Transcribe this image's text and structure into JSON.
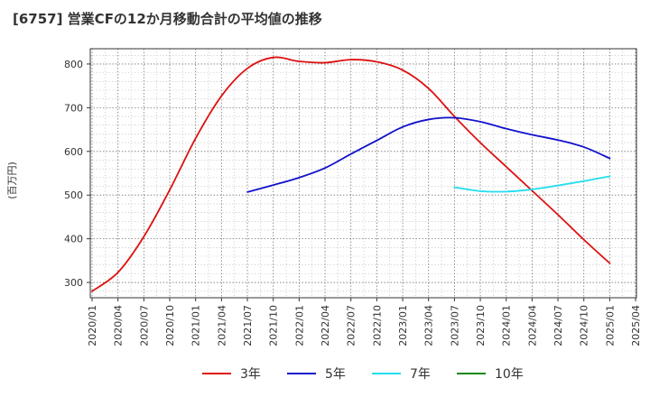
{
  "title": "[6757]  営業CFの12か月移動合計の平均値の推移",
  "chart_data": {
    "type": "line",
    "title": "[6757]  営業CFの12か月移動合計の平均値の推移",
    "xlabel": "",
    "ylabel": "(百万円)",
    "ylim": [
      265,
      835
    ],
    "yticks": [
      300,
      400,
      500,
      600,
      700,
      800
    ],
    "xticks": [
      "2020/01",
      "2020/04",
      "2020/07",
      "2020/10",
      "2021/01",
      "2021/04",
      "2021/07",
      "2021/10",
      "2022/01",
      "2022/04",
      "2022/07",
      "2022/10",
      "2023/01",
      "2023/04",
      "2023/07",
      "2023/10",
      "2024/01",
      "2024/04",
      "2024/07",
      "2024/10",
      "2025/01",
      "2025/04"
    ],
    "grid": true,
    "legend_position": "bottom",
    "series": [
      {
        "name": "3年",
        "color": "#dd1111",
        "x": [
          "2020/01",
          "2020/04",
          "2020/07",
          "2020/10",
          "2021/01",
          "2021/04",
          "2021/07",
          "2021/10",
          "2022/01",
          "2022/04",
          "2022/07",
          "2022/10",
          "2023/01",
          "2023/04",
          "2023/07",
          "2023/10",
          "2024/01",
          "2024/04",
          "2024/07",
          "2024/10",
          "2025/01"
        ],
        "values": [
          280,
          323,
          405,
          512,
          630,
          727,
          790,
          815,
          806,
          803,
          810,
          805,
          786,
          744,
          680,
          620,
          565,
          510,
          455,
          398,
          344
        ]
      },
      {
        "name": "5年",
        "color": "#1111cc",
        "x": [
          "2021/07",
          "2021/10",
          "2022/01",
          "2022/04",
          "2022/07",
          "2022/10",
          "2023/01",
          "2023/04",
          "2023/07",
          "2023/10",
          "2024/01",
          "2024/04",
          "2024/07",
          "2024/10",
          "2025/01"
        ],
        "values": [
          507,
          523,
          540,
          562,
          594,
          625,
          656,
          673,
          677,
          668,
          652,
          638,
          626,
          610,
          584
        ]
      },
      {
        "name": "7年",
        "color": "#22ddee",
        "x": [
          "2023/07",
          "2023/10",
          "2024/01",
          "2024/04",
          "2024/07",
          "2024/10",
          "2025/01"
        ],
        "values": [
          518,
          509,
          508,
          513,
          522,
          532,
          543
        ]
      },
      {
        "name": "10年",
        "color": "#118811",
        "x": [],
        "values": []
      }
    ]
  }
}
